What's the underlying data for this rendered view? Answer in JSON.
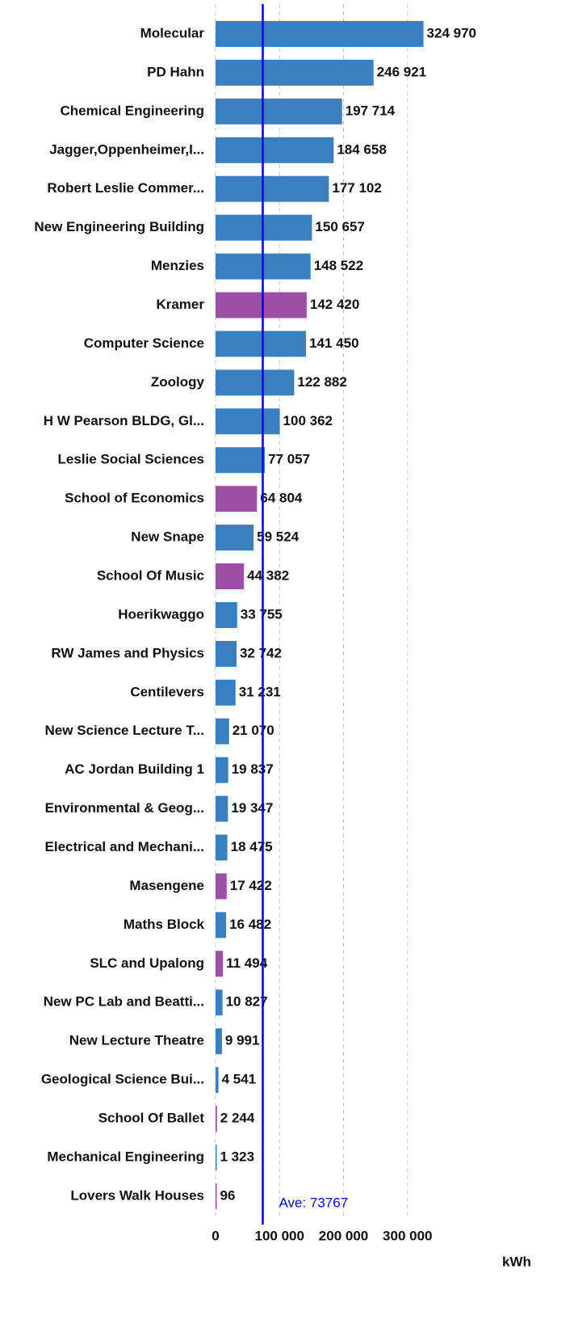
{
  "chart_data": {
    "type": "barh",
    "categories": [
      "Molecular",
      "PD Hahn",
      "Chemical Engineering",
      "Jagger,Oppenheimer,I...",
      "Robert Leslie Commer...",
      "New Engineering Building",
      "Menzies",
      "Kramer",
      "Computer Science",
      "Zoology",
      "H W Pearson BLDG, Gl...",
      "Leslie Social Sciences",
      "School of Economics",
      "New Snape",
      "School Of Music",
      "Hoerikwaggo",
      "RW James and Physics",
      "Centilevers",
      "New Science Lecture T...",
      "AC Jordan Building 1",
      "Environmental & Geog...",
      "Electrical and Mechani...",
      "Masengene",
      "Maths Block",
      "SLC and Upalong",
      "New PC Lab and Beatti...",
      "New Lecture Theatre",
      "Geological Science Bui...",
      "School Of Ballet",
      "Mechanical Engineering",
      "Lovers Walk Houses"
    ],
    "values": [
      324970,
      246921,
      197714,
      184658,
      177102,
      150657,
      148522,
      142420,
      141450,
      122882,
      100362,
      77057,
      64804,
      59524,
      44382,
      33755,
      32742,
      31231,
      21070,
      19837,
      19347,
      18475,
      17422,
      16482,
      11494,
      10827,
      9991,
      4541,
      2244,
      1323,
      96
    ],
    "value_labels": [
      "324 970",
      "246 921",
      "197 714",
      "184 658",
      "177 102",
      "150 657",
      "148 522",
      "142 420",
      "141 450",
      "122 882",
      "100 362",
      "77 057",
      "64 804",
      "59 524",
      "44 382",
      "33 755",
      "32 742",
      "31 231",
      "21 070",
      "19 837",
      "19 347",
      "18 475",
      "17 422",
      "16 482",
      "11 494",
      "10 827",
      "9 991",
      "4 541",
      "2 244",
      "1 323",
      "96"
    ],
    "colors": [
      "#3a7fbf",
      "#3a7fbf",
      "#3a7fbf",
      "#3a7fbf",
      "#3a7fbf",
      "#3a7fbf",
      "#3a7fbf",
      "#9b4fa5",
      "#3a7fbf",
      "#3a7fbf",
      "#3a7fbf",
      "#3a7fbf",
      "#9b4fa5",
      "#3a7fbf",
      "#9b4fa5",
      "#3a7fbf",
      "#3a7fbf",
      "#3a7fbf",
      "#3a7fbf",
      "#3a7fbf",
      "#3a7fbf",
      "#3a7fbf",
      "#9b4fa5",
      "#3a7fbf",
      "#9b4fa5",
      "#3a7fbf",
      "#3a7fbf",
      "#3a7fbf",
      "#9b4fa5",
      "#3a7fbf",
      "#9b4fa5"
    ],
    "xlim": [
      0,
      350000
    ],
    "xticks": [
      0,
      {
        "value": 100000,
        "label": "100 000"
      },
      {
        "value": 200000,
        "label": "200 000"
      },
      {
        "value": 300000,
        "label": "300 000"
      }
    ],
    "grid": true,
    "x_label": "kWh",
    "average": {
      "value": 73767,
      "label": "Ave: 73767",
      "color": "#0000e0"
    }
  }
}
